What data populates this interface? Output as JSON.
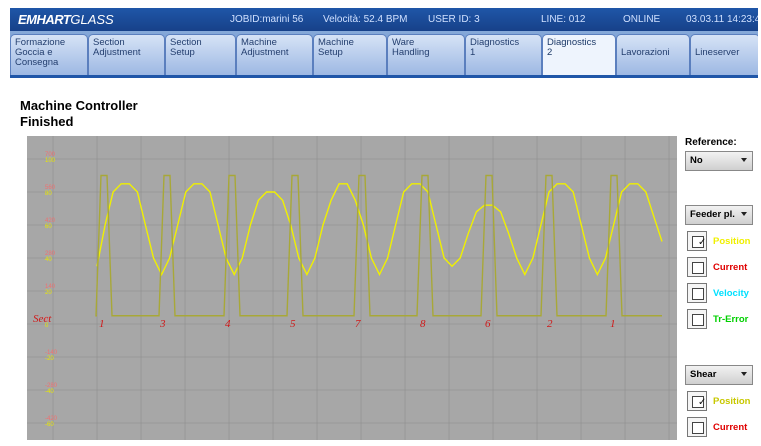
{
  "header": {
    "logo_bold": "EMHART",
    "logo_light": "GLASS",
    "jobid": "JOBID:marini 56",
    "speed": "Velocità: 52.4 BPM",
    "user": "USER ID: 3",
    "line": "LINE: 012",
    "status": "ONLINE",
    "datetime": "03.03.11  14:23:4"
  },
  "tabs": [
    {
      "l1": "Formazione",
      "l2": "Goccia e",
      "l3": "Consegna"
    },
    {
      "l1": "Section",
      "l2": "Adjustment",
      "l3": ""
    },
    {
      "l1": "Section",
      "l2": "Setup",
      "l3": ""
    },
    {
      "l1": "Machine",
      "l2": "Adjustment",
      "l3": ""
    },
    {
      "l1": "Machine",
      "l2": "Setup",
      "l3": ""
    },
    {
      "l1": "Ware",
      "l2": "Handling",
      "l3": ""
    },
    {
      "l1": "Diagnostics",
      "l2": "1",
      "l3": ""
    },
    {
      "l1": "Diagnostics",
      "l2": "2",
      "l3": ""
    },
    {
      "l1": "Lavorazioni",
      "l2": "",
      "l3": ""
    },
    {
      "l1": "Lineserver",
      "l2": "",
      "l3": ""
    }
  ],
  "page": {
    "title": "Machine Controller",
    "status": "Finished"
  },
  "right_panel": {
    "reference_label": "Reference:",
    "reference_value": "No",
    "group1": "Feeder pl.",
    "group1_items": [
      {
        "label": "Position",
        "checked": true,
        "color": "#f0f000"
      },
      {
        "label": "Current",
        "checked": false,
        "color": "#e00000"
      },
      {
        "label": "Velocity",
        "checked": false,
        "color": "#00e0ff"
      },
      {
        "label": "Tr-Error",
        "checked": false,
        "color": "#00d000"
      }
    ],
    "group2": "Shear",
    "group2_items": [
      {
        "label": "Position",
        "checked": true,
        "color": "#c8c800"
      },
      {
        "label": "Current",
        "checked": false,
        "color": "#e00000"
      }
    ]
  },
  "chart_data": {
    "type": "line",
    "y_ticks_outer": [
      "700",
      "560",
      "420",
      "280",
      "140",
      "0",
      "-140",
      "-280",
      "-420"
    ],
    "y_ticks_inner": [
      "100",
      "80",
      "60",
      "40",
      "20",
      "0",
      "-20",
      "-40",
      "-60"
    ],
    "sect_label": "Sect",
    "sect_numbers": [
      "1",
      "3",
      "4",
      "5",
      "7",
      "8",
      "6",
      "2",
      "1"
    ],
    "series": [
      {
        "color": "#f0f000",
        "values": [
          35,
          60,
          80,
          85,
          85,
          80,
          60,
          40,
          30,
          40,
          60,
          80,
          85,
          85,
          80,
          60,
          40,
          30,
          40,
          60,
          75,
          80,
          80,
          75,
          60,
          40,
          30,
          40,
          60,
          75,
          85,
          85,
          75,
          60,
          40,
          30,
          40,
          60,
          80,
          85,
          85,
          80,
          60,
          40,
          35,
          40,
          55,
          68,
          72,
          72,
          68,
          55,
          40,
          30,
          40,
          60,
          80,
          85,
          85,
          80,
          60,
          40,
          30,
          40,
          60,
          80,
          85,
          85,
          80,
          65,
          50
        ]
      },
      {
        "color": "#a8a838",
        "values": [
          85,
          5
        ]
      }
    ],
    "ylim": [
      -60,
      110
    ]
  }
}
